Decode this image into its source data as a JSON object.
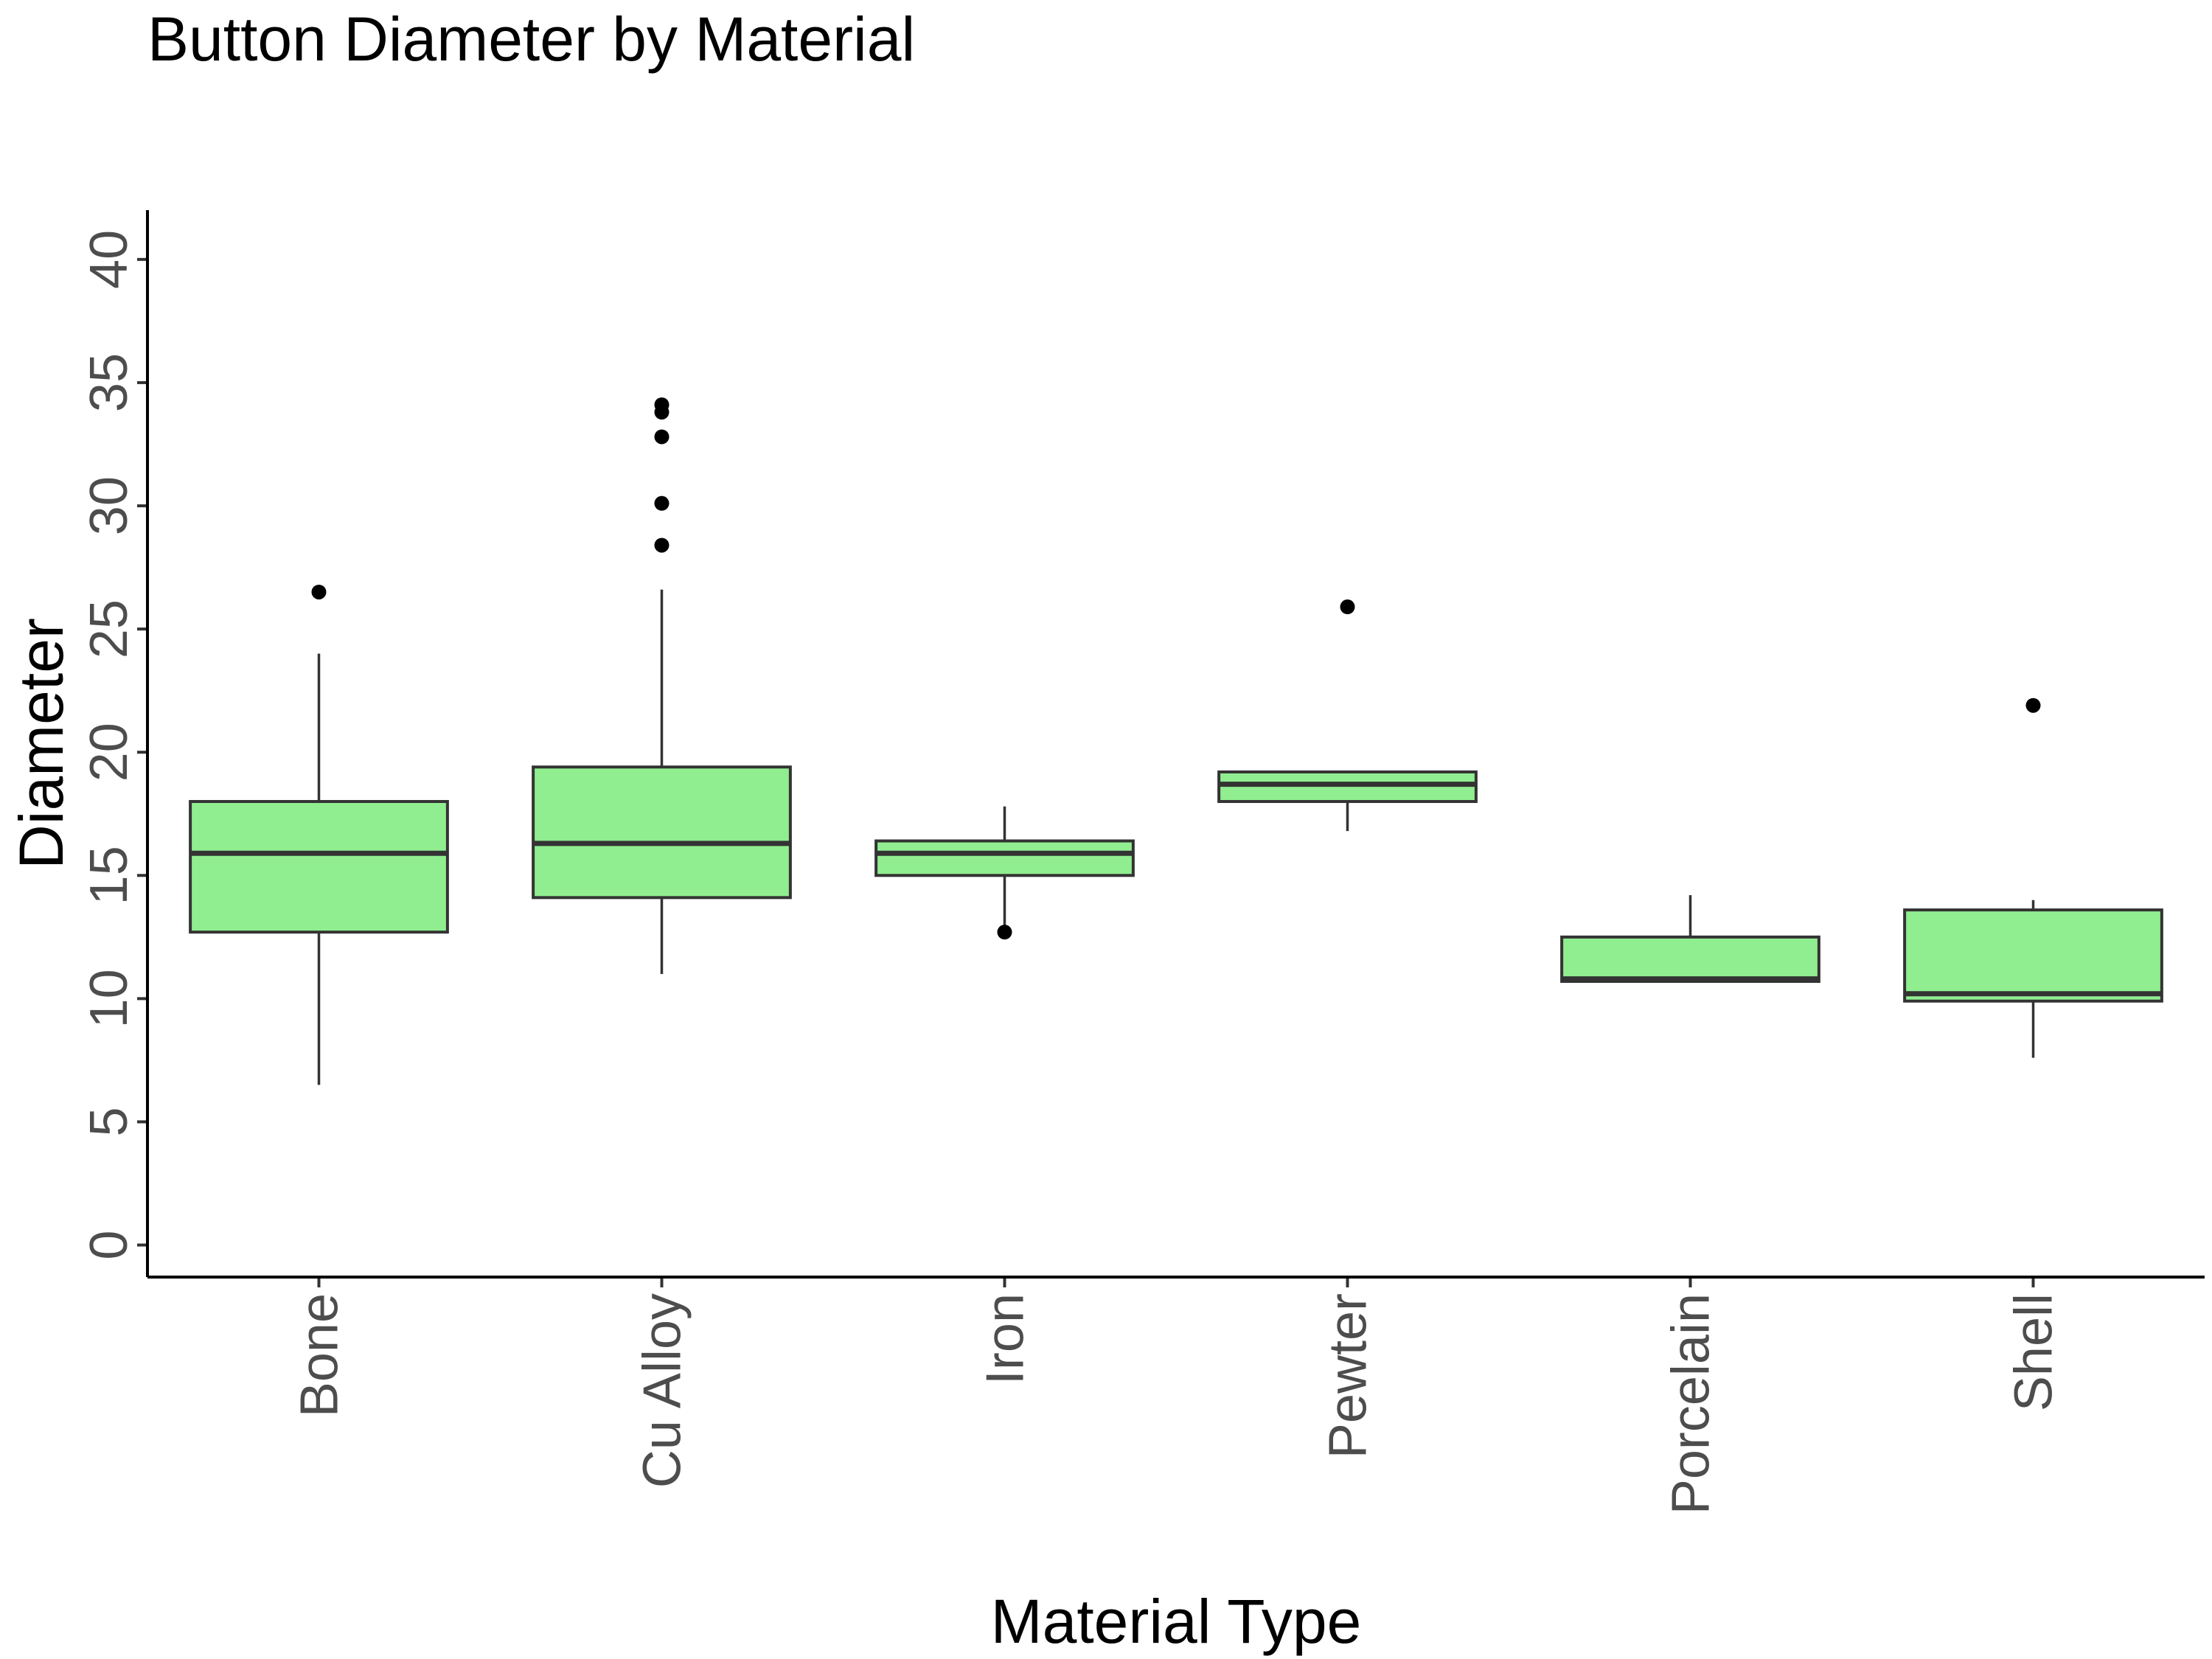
{
  "chart_data": {
    "type": "boxplot",
    "title": "Button Diameter by Material",
    "xlabel": "Material Type",
    "ylabel": "Diameter",
    "ylim": [
      -1.3,
      42
    ],
    "yticks": [
      0,
      5,
      10,
      15,
      20,
      25,
      30,
      35,
      40
    ],
    "grid": false,
    "box_fill": "#90ee90",
    "outline_color": "#333333",
    "categories": [
      "Bone",
      "Cu Alloy",
      "Iron",
      "Pewter",
      "Porcelain",
      "Shell"
    ],
    "boxes": [
      {
        "category": "Bone",
        "whisker_low": 6.5,
        "q1": 12.7,
        "median": 15.9,
        "q3": 18.0,
        "whisker_high": 24.0,
        "outliers": [
          26.5
        ]
      },
      {
        "category": "Cu Alloy",
        "whisker_low": 11.0,
        "q1": 14.1,
        "median": 16.3,
        "q3": 19.4,
        "whisker_high": 26.6,
        "outliers": [
          28.4,
          30.1,
          32.8,
          33.8,
          34.1
        ]
      },
      {
        "category": "Iron",
        "whisker_low": 12.7,
        "q1": 15.0,
        "median": 15.9,
        "q3": 16.4,
        "whisker_high": 17.8,
        "outliers": [
          12.7
        ]
      },
      {
        "category": "Pewter",
        "whisker_low": 16.8,
        "q1": 18.0,
        "median": 18.7,
        "q3": 19.2,
        "whisker_high": 19.2,
        "outliers": [
          25.9
        ]
      },
      {
        "category": "Porcelain",
        "whisker_low": 10.7,
        "q1": 10.7,
        "median": 10.8,
        "q3": 12.5,
        "whisker_high": 14.2,
        "outliers": []
      },
      {
        "category": "Shell",
        "whisker_low": 7.6,
        "q1": 9.9,
        "median": 10.2,
        "q3": 13.6,
        "whisker_high": 14.0,
        "outliers": [
          21.9
        ]
      }
    ]
  }
}
